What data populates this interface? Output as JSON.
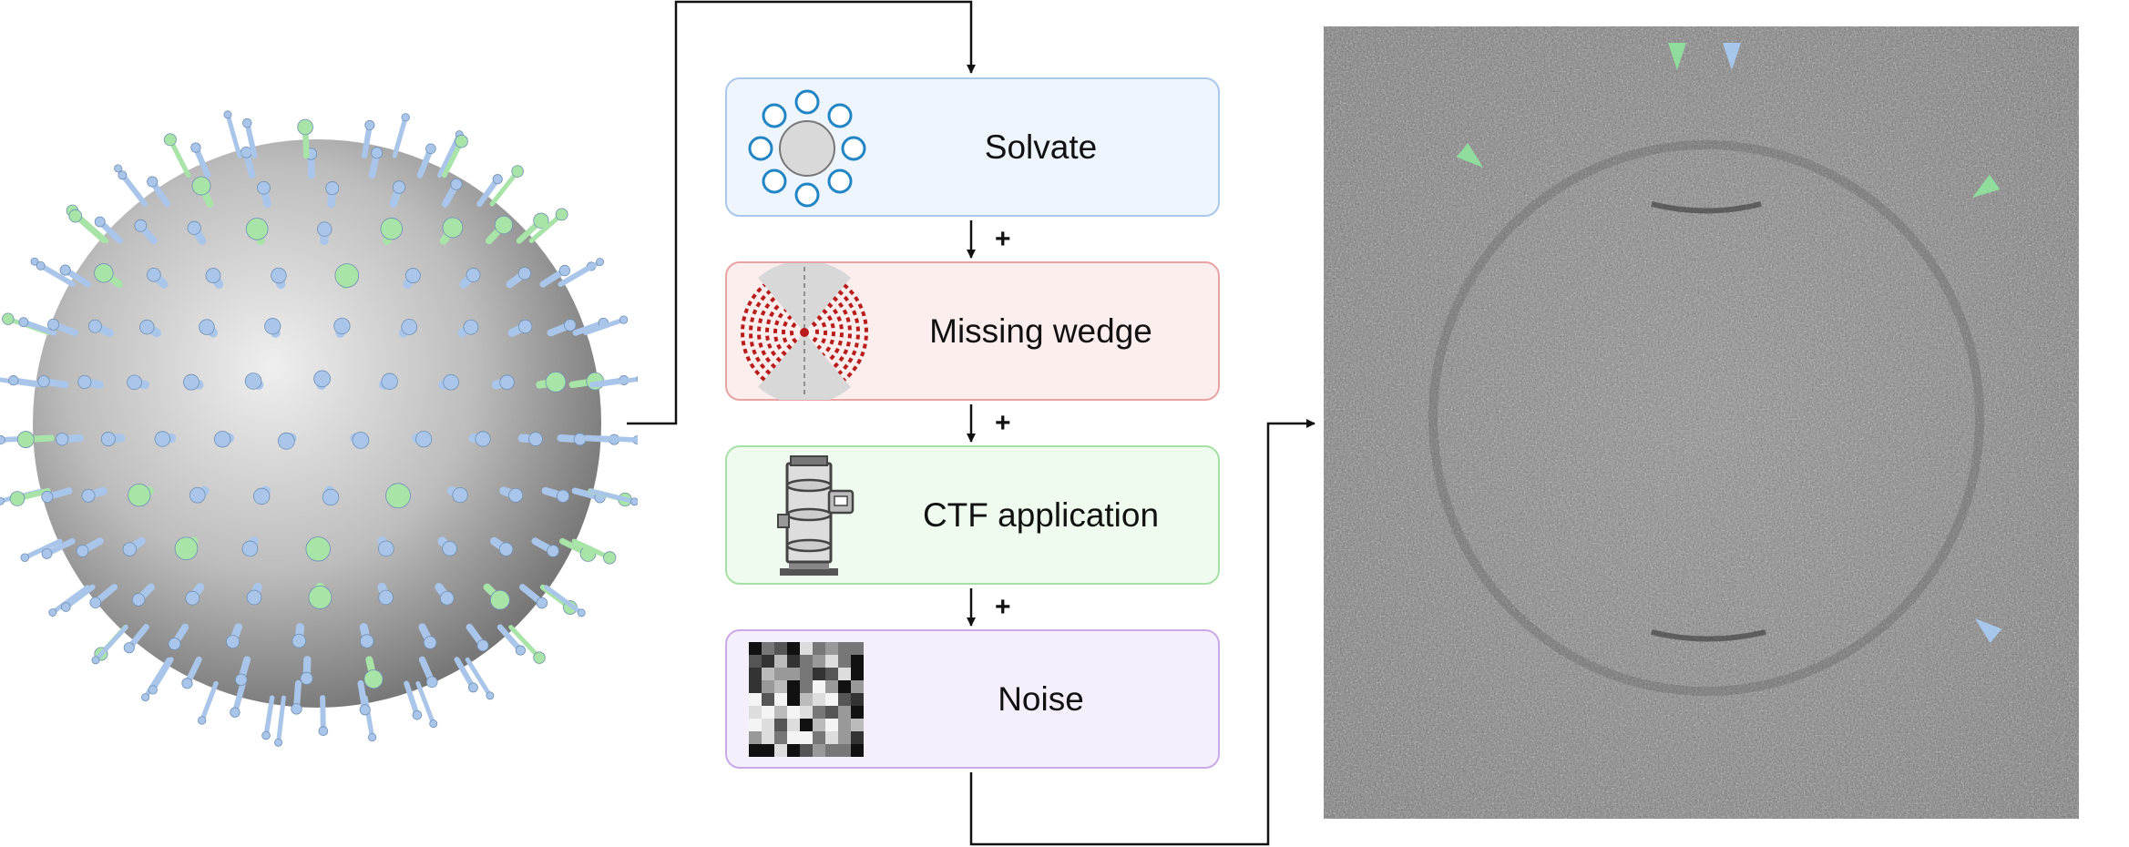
{
  "steps": [
    {
      "label": "Solvate",
      "fill": "#eef5fd",
      "stroke": "#a9c8ea",
      "icon": "solvent-molecules-icon"
    },
    {
      "label": "Missing wedge",
      "fill": "#fdeeee",
      "stroke": "#e9a3a3",
      "icon": "missing-wedge-icon"
    },
    {
      "label": "CTF application",
      "fill": "#eefbee",
      "stroke": "#a6e0a6",
      "icon": "microscope-icon"
    },
    {
      "label": "Noise",
      "fill": "#f5effc",
      "stroke": "#c9a9e6",
      "icon": "noise-grid-icon"
    }
  ],
  "connectors": [
    "+",
    "+",
    "+"
  ],
  "colors": {
    "protein_blue": "#a9c6ea",
    "protein_green": "#a8e3a8",
    "arrow_green": "#8fdc9c",
    "arrow_blue": "#a6c6ec",
    "wedge_red": "#b81c1c"
  }
}
